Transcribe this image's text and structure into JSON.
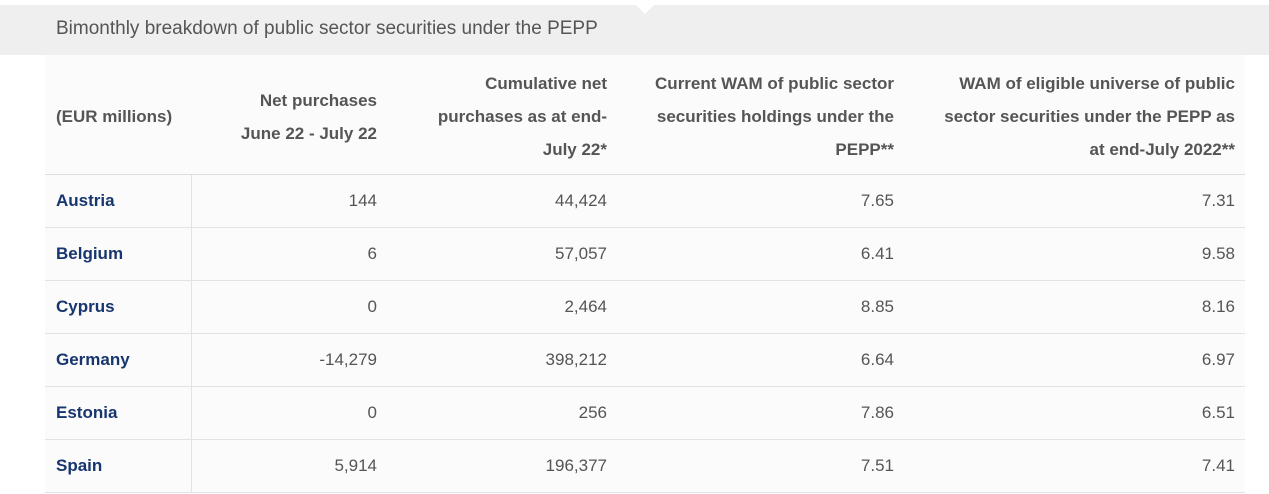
{
  "title": "Bimonthly breakdown of public sector securities under the PEPP",
  "table": {
    "headers": [
      "(EUR millions)",
      "Net purchases June 22 - July 22",
      "Cumulative net purchases as at end-July 22*",
      "Current WAM of public sector securities holdings under the PEPP**",
      "WAM of eligible universe of public sector securities under the PEPP as at end-July 2022**"
    ],
    "rows": [
      {
        "country": "Austria",
        "net": "144",
        "cumulative": "44,424",
        "current_wam": "7.65",
        "eligible_wam": "7.31"
      },
      {
        "country": "Belgium",
        "net": "6",
        "cumulative": "57,057",
        "current_wam": "6.41",
        "eligible_wam": "9.58"
      },
      {
        "country": "Cyprus",
        "net": "0",
        "cumulative": "2,464",
        "current_wam": "8.85",
        "eligible_wam": "8.16"
      },
      {
        "country": "Germany",
        "net": "-14,279",
        "cumulative": "398,212",
        "current_wam": "6.64",
        "eligible_wam": "6.97"
      },
      {
        "country": "Estonia",
        "net": "0",
        "cumulative": "256",
        "current_wam": "7.86",
        "eligible_wam": "6.51"
      },
      {
        "country": "Spain",
        "net": "5,914",
        "cumulative": "196,377",
        "current_wam": "7.51",
        "eligible_wam": "7.41"
      }
    ]
  },
  "colors": {
    "country_link": "#17356e",
    "header_band": "#efefef",
    "text": "#555555"
  }
}
